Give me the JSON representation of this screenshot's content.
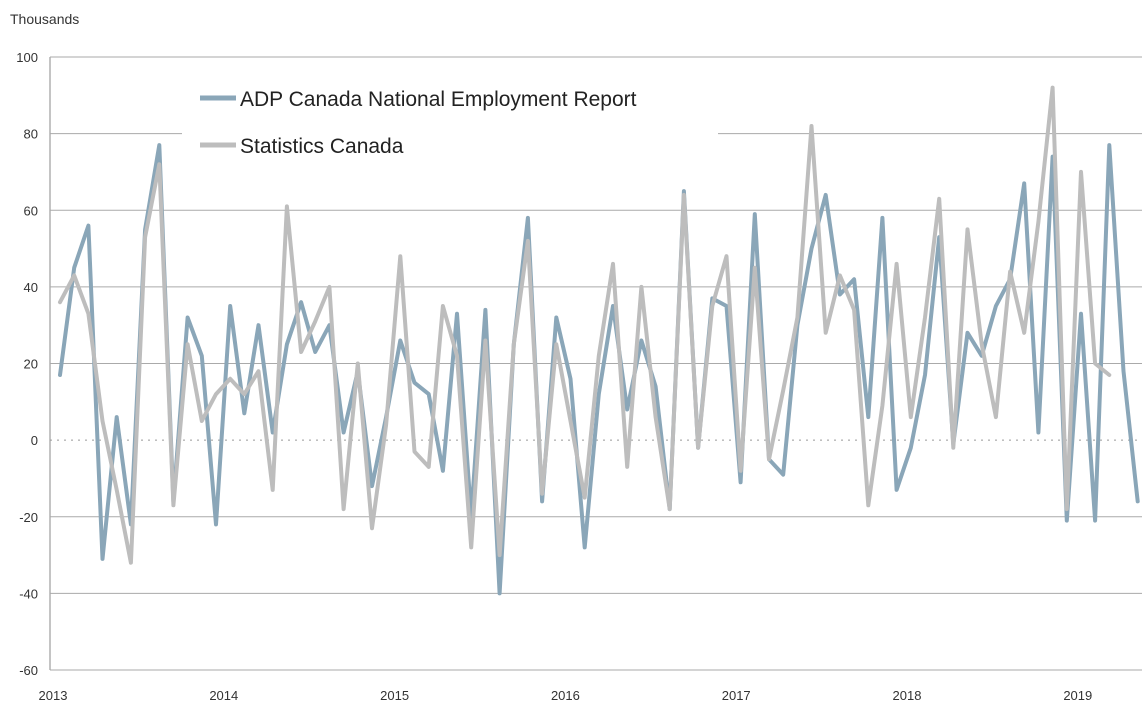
{
  "chart_data": {
    "type": "line",
    "title": "",
    "unit_label": "Thousands",
    "xlabel": "",
    "ylabel": "",
    "ylim": [
      -60,
      100
    ],
    "yticks": [
      -60,
      -40,
      -20,
      0,
      20,
      40,
      60,
      80,
      100
    ],
    "y_tick_labels": [
      "-60",
      "-40",
      "-20",
      "0",
      "20",
      "40",
      "60",
      "80",
      "100"
    ],
    "x_tick_labels": [
      "2013",
      "2014",
      "2015",
      "2016",
      "2017",
      "2018",
      "2019"
    ],
    "x_start_year": 2013,
    "grid": "horizontal",
    "legend_position": "top-left",
    "series": [
      {
        "name": "ADP Canada National Employment Report",
        "color": "#8AA6B8",
        "values": [
          17,
          45,
          56,
          -31,
          6,
          -22,
          55,
          77,
          -16,
          32,
          22,
          -22,
          35,
          7,
          30,
          2,
          25,
          36,
          23,
          30,
          2,
          18,
          -12,
          6,
          26,
          15,
          12,
          -8,
          33,
          -20,
          34,
          -40,
          25,
          58,
          -16,
          32,
          16,
          -28,
          12,
          35,
          8,
          26,
          14,
          -18,
          65,
          -2,
          37,
          35,
          -11,
          59,
          -5,
          -9,
          30,
          50,
          64,
          38,
          42,
          6,
          58,
          -13,
          -2,
          17,
          53,
          -1,
          28,
          22,
          35,
          42,
          67,
          2,
          74,
          -21,
          33,
          -21,
          77,
          18,
          -16
        ]
      },
      {
        "name": "Statistics Canada",
        "color": "#BDBDBD",
        "values": [
          36,
          43,
          33,
          5,
          -13,
          -32,
          53,
          72,
          -17,
          25,
          5,
          12,
          16,
          12,
          18,
          -13,
          61,
          23,
          31,
          40,
          -18,
          20,
          -23,
          4,
          48,
          -3,
          -7,
          35,
          22,
          -28,
          26,
          -30,
          25,
          52,
          -14,
          25,
          5,
          -15,
          22,
          46,
          -7,
          40,
          6,
          -18,
          64,
          -2,
          35,
          48,
          -8,
          45,
          -5,
          13,
          32,
          82,
          28,
          43,
          34,
          -17,
          9,
          46,
          6,
          32,
          63,
          -2,
          55,
          25,
          6,
          44,
          28,
          57,
          92,
          -18,
          70,
          20,
          17
        ]
      }
    ]
  }
}
